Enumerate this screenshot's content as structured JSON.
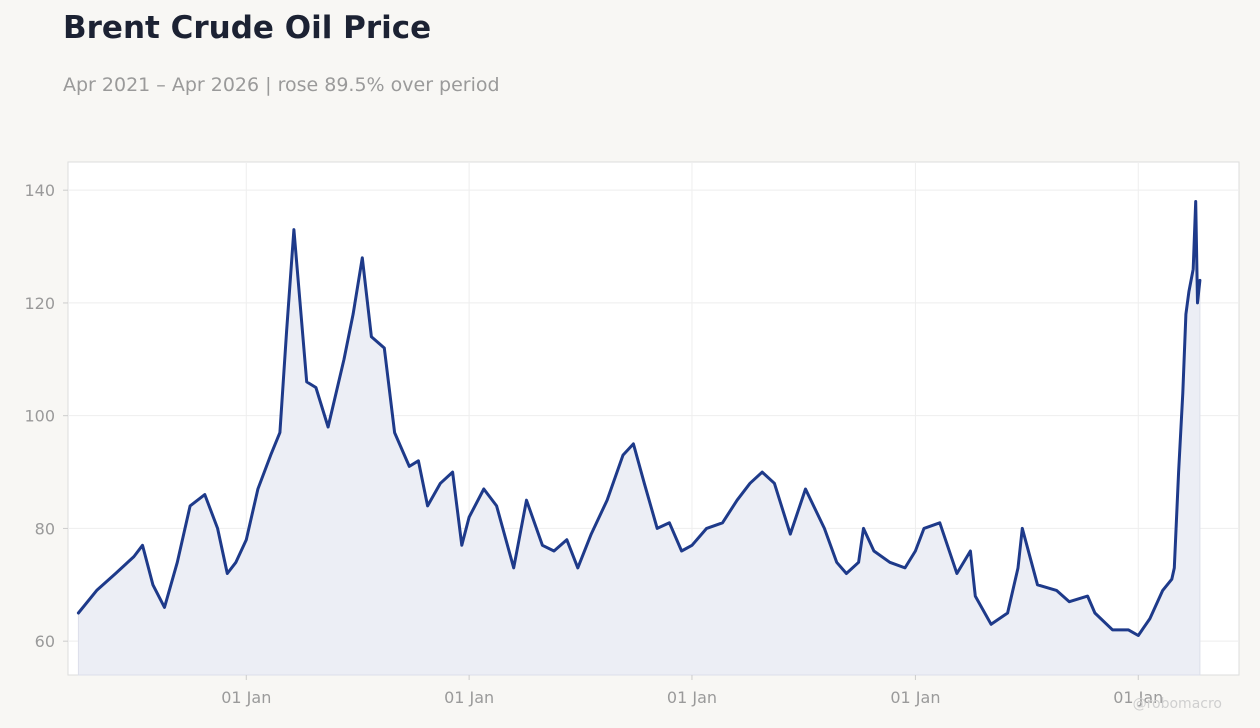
{
  "header": {
    "title": "Brent Crude Oil Price",
    "subtitle": "Apr 2021 – Apr 2026 | rose 89.5% over period"
  },
  "watermark": "@robomacro",
  "colors": {
    "line": "#1e3a8a",
    "fill": "#eceef5",
    "grid": "#eeeeee",
    "background": "#f8f7f4",
    "plot_background": "#ffffff"
  },
  "chart_data": {
    "type": "area",
    "title": "Brent Crude Oil Price",
    "subtitle": "Apr 2021 – Apr 2026 | rose 89.5% over period",
    "xlabel": "",
    "ylabel": "",
    "ylim": [
      54,
      145
    ],
    "xlim": [
      "2021-03-15",
      "2026-06-15"
    ],
    "yticks": [
      60,
      80,
      100,
      120,
      140
    ],
    "xticks": [
      {
        "date": "2022-01-01",
        "label": "01 Jan"
      },
      {
        "date": "2023-01-01",
        "label": "01 Jan"
      },
      {
        "date": "2024-01-01",
        "label": "01 Jan"
      },
      {
        "date": "2025-01-01",
        "label": "01 Jan"
      },
      {
        "date": "2026-01-01",
        "label": "01 Jan"
      }
    ],
    "grid": true,
    "legend": "none",
    "series": [
      {
        "x": [
          "2021-04-01",
          "2021-05-01",
          "2021-06-01",
          "2021-07-01",
          "2021-07-15",
          "2021-08-01",
          "2021-08-20",
          "2021-09-10",
          "2021-10-01",
          "2021-10-25",
          "2021-11-15",
          "2021-12-01",
          "2021-12-15",
          "2022-01-01",
          "2022-01-20",
          "2022-02-10",
          "2022-02-25",
          "2022-03-08",
          "2022-03-20",
          "2022-04-10",
          "2022-04-25",
          "2022-05-15",
          "2022-06-10",
          "2022-06-25",
          "2022-07-10",
          "2022-07-25",
          "2022-08-15",
          "2022-09-01",
          "2022-09-25",
          "2022-10-10",
          "2022-10-25",
          "2022-11-15",
          "2022-12-05",
          "2022-12-20",
          "2023-01-01",
          "2023-01-25",
          "2023-02-15",
          "2023-03-15",
          "2023-04-05",
          "2023-05-01",
          "2023-05-20",
          "2023-06-10",
          "2023-06-28",
          "2023-07-20",
          "2023-08-15",
          "2023-09-10",
          "2023-09-27",
          "2023-10-15",
          "2023-11-05",
          "2023-11-25",
          "2023-12-15",
          "2024-01-01",
          "2024-01-25",
          "2024-02-20",
          "2024-03-15",
          "2024-04-05",
          "2024-04-25",
          "2024-05-15",
          "2024-06-10",
          "2024-07-05",
          "2024-08-05",
          "2024-08-25",
          "2024-09-10",
          "2024-09-30",
          "2024-10-08",
          "2024-10-25",
          "2024-11-20",
          "2024-12-15",
          "2025-01-01",
          "2025-01-15",
          "2025-02-10",
          "2025-03-10",
          "2025-04-01",
          "2025-04-09",
          "2025-05-05",
          "2025-06-01",
          "2025-06-18",
          "2025-06-25",
          "2025-07-20",
          "2025-08-20",
          "2025-09-10",
          "2025-10-10",
          "2025-10-22",
          "2025-11-20",
          "2025-12-16",
          "2026-01-01",
          "2026-01-20",
          "2026-02-10",
          "2026-02-25",
          "2026-03-01",
          "2026-03-08",
          "2026-03-15",
          "2026-03-20",
          "2026-03-25",
          "2026-04-01",
          "2026-04-05",
          "2026-04-08",
          "2026-04-12"
        ],
        "values": [
          65,
          69,
          72,
          75,
          77,
          70,
          66,
          74,
          84,
          86,
          80,
          72,
          74,
          78,
          87,
          93,
          97,
          115,
          133,
          106,
          105,
          98,
          110,
          118,
          128,
          114,
          112,
          97,
          91,
          92,
          84,
          88,
          90,
          77,
          82,
          87,
          84,
          73,
          85,
          77,
          76,
          78,
          73,
          79,
          85,
          93,
          95,
          88,
          80,
          81,
          76,
          77,
          80,
          81,
          85,
          88,
          90,
          88,
          79,
          87,
          80,
          74,
          72,
          74,
          80,
          76,
          74,
          73,
          76,
          80,
          81,
          72,
          76,
          68,
          63,
          65,
          73,
          80,
          70,
          69,
          67,
          68,
          65,
          62,
          62,
          61,
          64,
          69,
          71,
          73,
          90,
          104,
          118,
          122,
          126,
          138,
          120,
          124
        ]
      }
    ]
  }
}
